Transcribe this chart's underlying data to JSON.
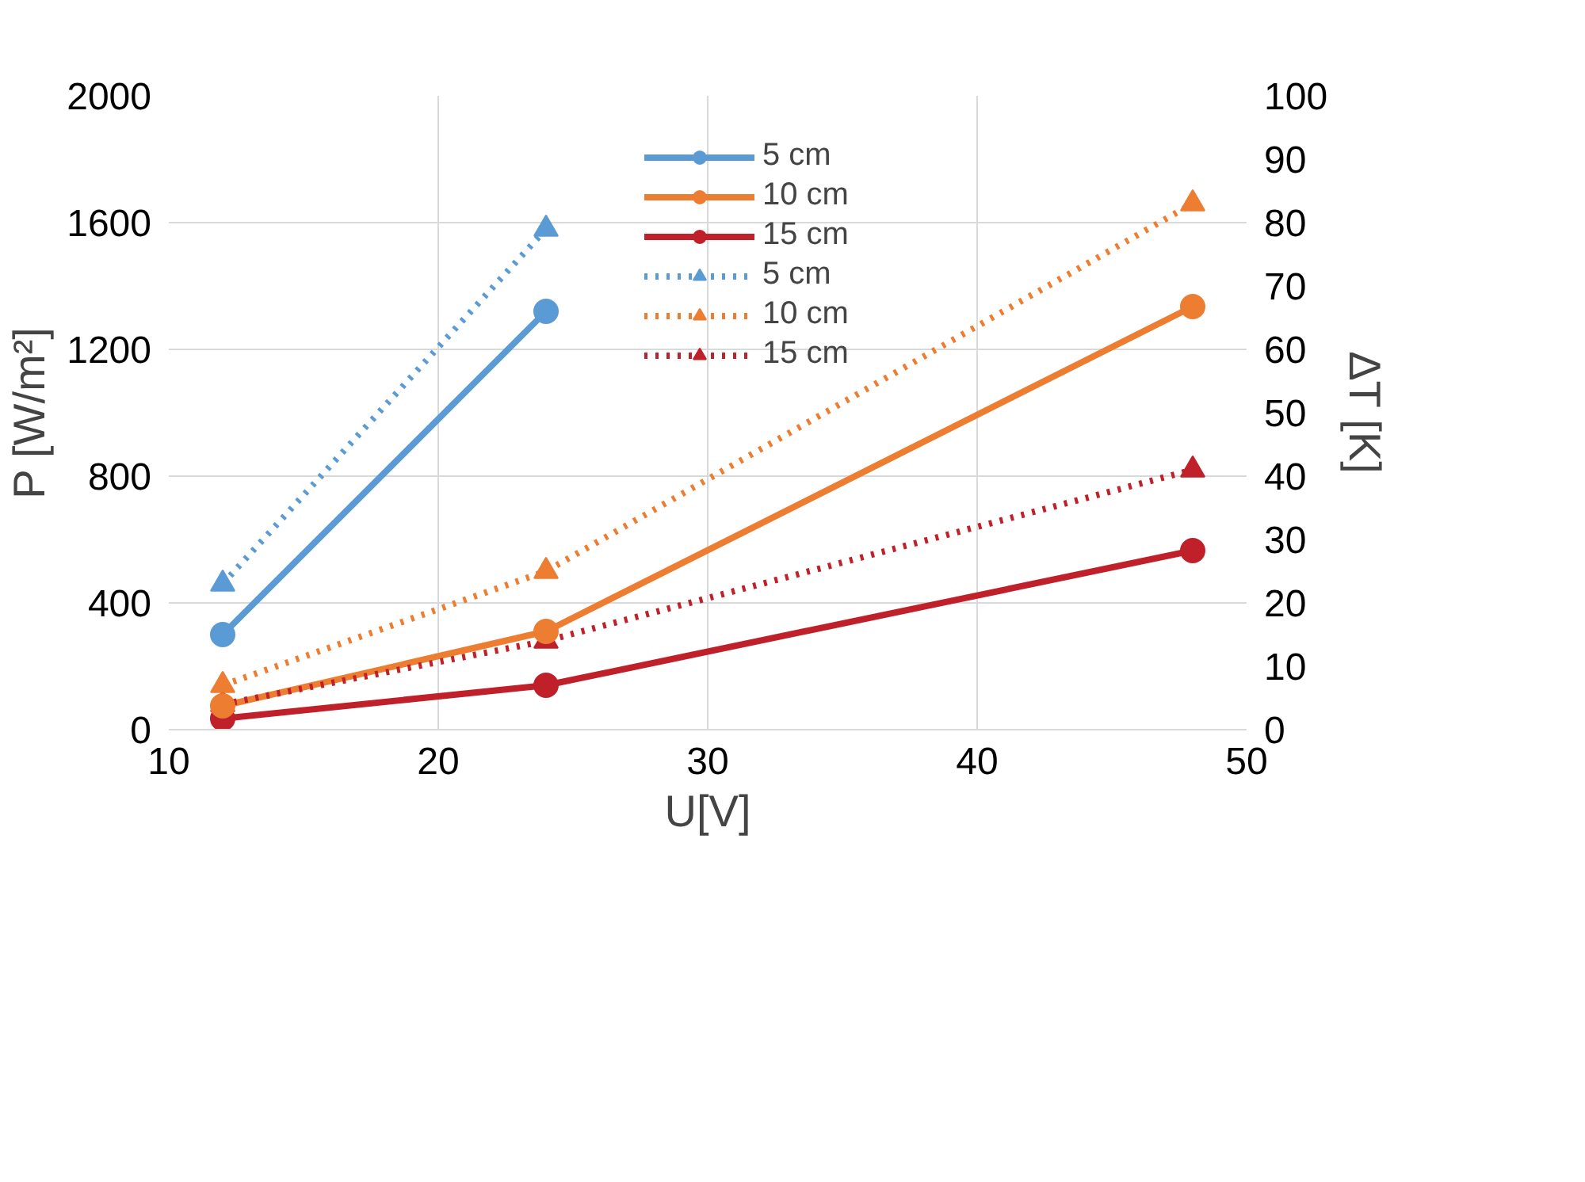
{
  "chart_data": {
    "type": "line",
    "x": [
      12,
      24,
      48
    ],
    "xlabel": "U[V]",
    "ylabel": "P [W/m²]",
    "y2label": "ΔT [K]",
    "xlim": [
      10,
      50
    ],
    "xticks": [
      10,
      20,
      30,
      40,
      50
    ],
    "ylim": [
      0,
      2000
    ],
    "yticks": [
      0,
      400,
      800,
      1200,
      1600,
      2000
    ],
    "y2lim": [
      0,
      100
    ],
    "y2ticks": [
      0,
      10,
      20,
      30,
      40,
      50,
      60,
      70,
      80,
      90,
      100
    ],
    "grid": true,
    "legend": "top",
    "series": [
      {
        "name": "5 cm",
        "color": "#5b9bd5",
        "values": [
          300,
          1320,
          null
        ],
        "marker": "circle",
        "line_style": "solid"
      },
      {
        "name": "10 cm",
        "color": "#ed7d31",
        "values": [
          75,
          310,
          1335
        ],
        "marker": "circle",
        "line_style": "solid"
      },
      {
        "name": "15 cm",
        "color": "#c0202a",
        "values": [
          35,
          140,
          565
        ],
        "marker": "circle",
        "line_style": "solid"
      },
      {
        "name": "5 cm",
        "color": "#5b9bd5",
        "values": [
          23,
          79,
          null
        ],
        "axis": "y2",
        "marker": "triangle",
        "line_style": "dotted"
      },
      {
        "name": "10 cm",
        "color": "#ed7d31",
        "values": [
          7,
          25,
          83
        ],
        "axis": "y2",
        "marker": "triangle",
        "line_style": "dotted"
      },
      {
        "name": "15 cm",
        "color": "#c0202a",
        "values": [
          4,
          14,
          41
        ],
        "axis": "y2",
        "marker": "triangle",
        "line_style": "dotted"
      }
    ]
  }
}
